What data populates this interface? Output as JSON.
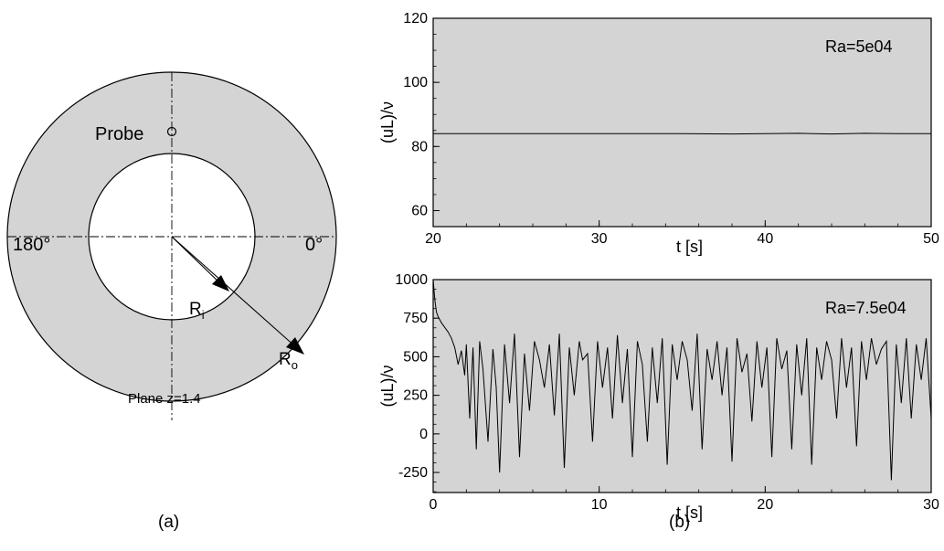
{
  "panel_a": {
    "probe_label": "Probe",
    "angle_left": "180°",
    "angle_right": "0°",
    "inner_radius_main": "R",
    "inner_radius_sub": "i",
    "outer_radius_main": "R",
    "outer_radius_sub": "o",
    "plane_label": "Plane z=1.4",
    "caption": "(a)",
    "colors": {
      "annulus_fill": "#d4d4d4",
      "inner_fill": "#ffffff",
      "stroke": "#000000"
    }
  },
  "panel_b_caption": "(b)",
  "chart_data": [
    {
      "type": "line",
      "annotation": "Ra=5e04",
      "xlabel": "t [s]",
      "ylabel": "(uL)/ν",
      "xlim": [
        20,
        50
      ],
      "ylim": [
        55,
        120
      ],
      "xticks": [
        20,
        30,
        40,
        50
      ],
      "yticks": [
        60,
        80,
        100,
        120
      ],
      "grid": false,
      "background": "#d4d4d4",
      "series": [
        {
          "x": [
            20,
            25,
            30,
            33,
            35,
            38,
            40,
            42,
            44,
            46,
            48,
            50
          ],
          "y": [
            84,
            84,
            84,
            84,
            84,
            83.9,
            84,
            84.1,
            83.9,
            84.1,
            84,
            84
          ]
        }
      ]
    },
    {
      "type": "line",
      "annotation": "Ra=7.5e04",
      "xlabel": "t [s]",
      "ylabel": "(uL)/ν",
      "xlim": [
        0,
        30
      ],
      "ylim": [
        -380,
        1000
      ],
      "xticks": [
        0,
        10,
        20,
        30
      ],
      "yticks": [
        -250,
        0,
        250,
        500,
        750,
        1000
      ],
      "grid": false,
      "background": "#d4d4d4",
      "series": [
        {
          "x": [
            0,
            0.1,
            0.2,
            0.3,
            0.5,
            0.7,
            0.9,
            1.1,
            1.3,
            1.5,
            1.7,
            1.9,
            2.0,
            2.2,
            2.4,
            2.6,
            2.8,
            3.0,
            3.3,
            3.6,
            3.8,
            4.0,
            4.3,
            4.6,
            4.9,
            5.2,
            5.5,
            5.8,
            6.1,
            6.4,
            6.7,
            7.0,
            7.3,
            7.6,
            7.9,
            8.2,
            8.5,
            8.8,
            9.0,
            9.3,
            9.6,
            9.9,
            10.2,
            10.5,
            10.8,
            11.1,
            11.4,
            11.7,
            12.0,
            12.3,
            12.6,
            12.9,
            13.2,
            13.5,
            13.8,
            14.1,
            14.4,
            14.7,
            15.0,
            15.3,
            15.6,
            15.9,
            16.2,
            16.5,
            16.8,
            17.1,
            17.4,
            17.7,
            18.0,
            18.3,
            18.6,
            18.9,
            19.2,
            19.5,
            19.8,
            20.1,
            20.4,
            20.7,
            21.0,
            21.3,
            21.6,
            21.9,
            22.2,
            22.5,
            22.8,
            23.1,
            23.4,
            23.7,
            24.0,
            24.3,
            24.6,
            24.9,
            25.2,
            25.5,
            25.8,
            26.1,
            26.4,
            26.7,
            27.0,
            27.3,
            27.6,
            27.9,
            28.2,
            28.5,
            28.8,
            29.1,
            29.4,
            29.7,
            30.0
          ],
          "y": [
            1000,
            870,
            790,
            760,
            720,
            690,
            660,
            620,
            560,
            450,
            540,
            380,
            580,
            100,
            560,
            -100,
            600,
            420,
            -50,
            550,
            300,
            -250,
            580,
            200,
            650,
            -150,
            520,
            150,
            600,
            480,
            300,
            580,
            120,
            650,
            -220,
            560,
            250,
            600,
            480,
            520,
            -50,
            600,
            300,
            560,
            100,
            640,
            200,
            550,
            -150,
            600,
            450,
            -50,
            560,
            200,
            620,
            -200,
            580,
            350,
            600,
            480,
            150,
            650,
            -100,
            550,
            350,
            600,
            250,
            560,
            -180,
            620,
            400,
            520,
            80,
            600,
            300,
            560,
            -150,
            620,
            420,
            540,
            -100,
            580,
            250,
            620,
            -200,
            560,
            350,
            600,
            480,
            100,
            620,
            300,
            560,
            -80,
            600,
            350,
            620,
            450,
            550,
            600,
            -300,
            580,
            200,
            620,
            100,
            580,
            350,
            620,
            100
          ]
        }
      ]
    }
  ]
}
